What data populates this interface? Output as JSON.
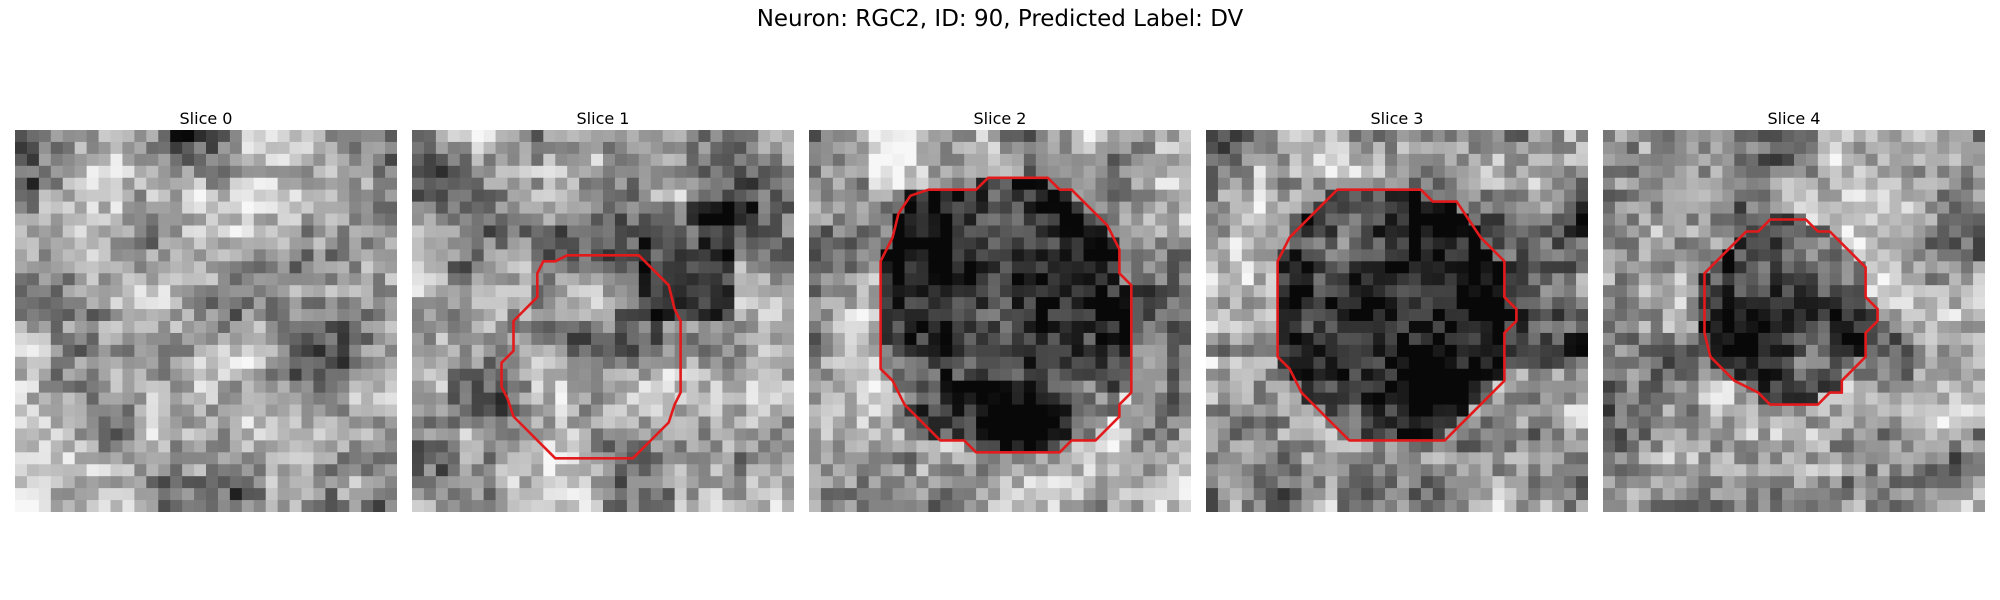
{
  "figure": {
    "title": "Neuron: RGC2, ID: 90, Predicted Label: DV",
    "contour_color": "#e31a1c",
    "colormap": "gray"
  },
  "panels": [
    {
      "label": "Slice 0",
      "has_contour": false,
      "seed": 11,
      "dark_region": "none"
    },
    {
      "label": "Slice 1",
      "has_contour": true,
      "seed": 23,
      "dark_region": "right-edge"
    },
    {
      "label": "Slice 2",
      "has_contour": true,
      "seed": 37,
      "dark_region": "inside-contour"
    },
    {
      "label": "Slice 3",
      "has_contour": true,
      "seed": 41,
      "dark_region": "inside-contour"
    },
    {
      "label": "Slice 4",
      "has_contour": true,
      "seed": 53,
      "dark_region": "inside-contour"
    }
  ]
}
